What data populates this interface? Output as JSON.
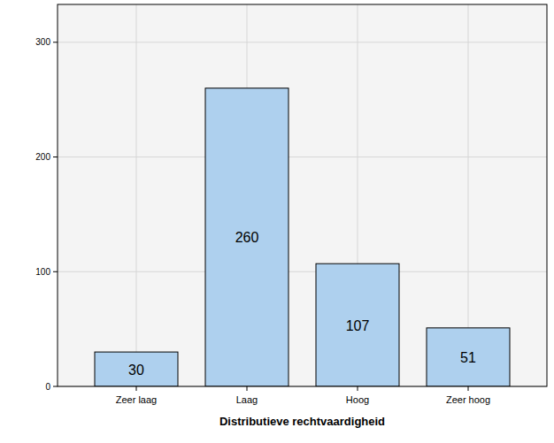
{
  "chart_data": {
    "type": "bar",
    "xlabel": "Distributieve rechtvaardigheid",
    "categories": [
      "Zeer laag",
      "Laag",
      "Hoog",
      "Zeer hoog"
    ],
    "values": [
      30,
      260,
      107,
      51
    ],
    "color": "#aed0ee",
    "ylim": [
      0,
      333
    ],
    "yticks": [
      0,
      100,
      200,
      300
    ],
    "grid": true,
    "data_labels": true
  }
}
